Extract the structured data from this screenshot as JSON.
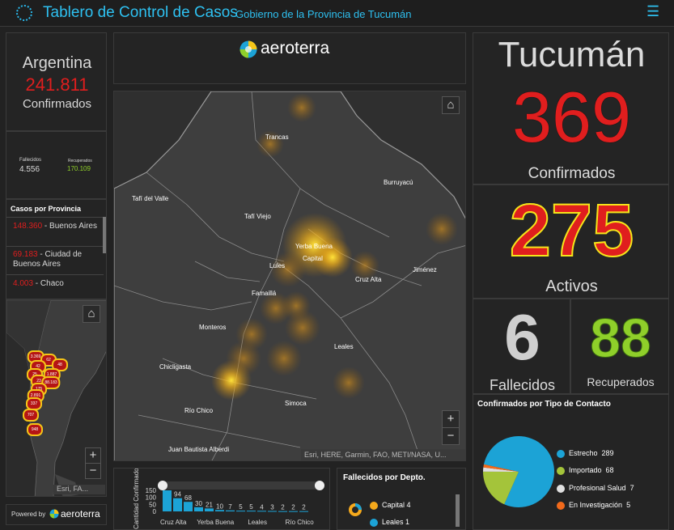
{
  "header": {
    "title": "Tablero de Control de Casos",
    "subtitle": "Gobierno de la Provincia de Tucumán"
  },
  "argentina": {
    "name": "Argentina",
    "confirmed": "241.811",
    "confirmed_label": "Confirmados",
    "deaths_label": "Fallecidos",
    "deaths": "4.556",
    "recovered_label": "Recuperados",
    "recovered": "170.109"
  },
  "provinces": {
    "title": "Casos por Provincia",
    "items": [
      {
        "count": "148.360",
        "name": "Buenos Aires"
      },
      {
        "count": "69.183",
        "name": "Ciudad de Buenos Aires"
      },
      {
        "count": "4.003",
        "name": "Chaco"
      }
    ]
  },
  "mini_map": {
    "attribution": "Esri, FA...",
    "markers": [
      "3.369",
      "62",
      "48",
      "42",
      "25",
      "1.887",
      "23",
      "88.183",
      "175",
      "2.891",
      "337",
      "707",
      "948"
    ]
  },
  "powered": {
    "label": "Powered by",
    "brand": "aeroterra"
  },
  "brand_panel": {
    "brand": "aeroterra"
  },
  "main_map": {
    "attribution": "Esri, HERE, Garmin, FAO, METI/NASA, U...",
    "towns": [
      "Trancas",
      "Burruyacú",
      "Tafí del Valle",
      "Tafí Viejo",
      "Yerba Buena",
      "Capital",
      "Lules",
      "Cruz Alta",
      "Jiménez",
      "Famaillá",
      "Monteros",
      "Leales",
      "Chicligasta",
      "Simoca",
      "Río Chico",
      "Juan Bautista Alberdi"
    ]
  },
  "tucuman": {
    "name": "Tucumán",
    "confirmed": "369",
    "confirmed_label": "Confirmados",
    "active": "275",
    "active_label": "Activos",
    "deaths": "6",
    "deaths_label": "Fallecidos",
    "recovered": "88",
    "recovered_label": "Recuperados"
  },
  "contact_chart": {
    "title": "Confirmados por Tipo de Contacto",
    "items": [
      {
        "label": "Estrecho",
        "value": "289",
        "color": "#1ca3d6"
      },
      {
        "label": "Importado",
        "value": "68",
        "color": "#a4c43a"
      },
      {
        "label": "Profesional Salud",
        "value": "7",
        "color": "#e0e0e0"
      },
      {
        "label": "En Investigación",
        "value": "5",
        "color": "#f26a1b"
      }
    ]
  },
  "chart_data": [
    {
      "type": "bar",
      "title": "",
      "ylabel": "Cantidad Confirmados",
      "ylim": [
        0,
        150
      ],
      "yticks": [
        "150",
        "100",
        "50",
        "0"
      ],
      "categories": [
        "Cruz Alta",
        "",
        "",
        "",
        "Yerba Buena",
        "",
        "",
        "",
        "Leales",
        "",
        "",
        "",
        "Río Chico",
        ""
      ],
      "values": [
        150,
        94,
        68,
        30,
        21,
        10,
        7,
        5,
        5,
        4,
        3,
        2,
        2,
        2
      ],
      "value_labels": [
        "",
        "94",
        "68",
        "30",
        "21",
        "10",
        "7",
        "5",
        "5",
        "4",
        "3",
        "2",
        "2",
        "2"
      ],
      "color": "#1ca3d6"
    },
    {
      "type": "pie",
      "title": "Confirmados por Tipo de Contacto",
      "categories": [
        "Estrecho",
        "Importado",
        "Profesional Salud",
        "En Investigación"
      ],
      "values": [
        289,
        68,
        7,
        5
      ],
      "colors": [
        "#1ca3d6",
        "#a4c43a",
        "#e0e0e0",
        "#f26a1b"
      ]
    }
  ],
  "deaths_by_dept": {
    "title": "Fallecidos por Depto.",
    "items": [
      {
        "label": "Capital",
        "value": "4"
      },
      {
        "label": "Leales",
        "value": "1"
      }
    ]
  }
}
